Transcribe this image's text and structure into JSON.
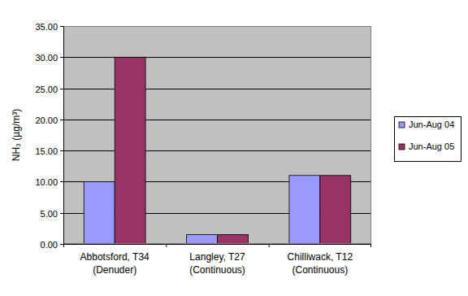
{
  "chart_data": {
    "type": "bar",
    "y_label": "NH₃ (µg/m³)",
    "categories": [
      "Abbotsford, T34\n(Denuder)",
      "Langley, T27\n(Continuous)",
      "Chilliwack, T12\n(Continuous)"
    ],
    "series": [
      {
        "name": "Jun-Aug 04",
        "color": "#9999ff",
        "values": [
          10,
          1.5,
          11
        ]
      },
      {
        "name": "Jun-Aug 05",
        "color": "#993366",
        "values": [
          30,
          1.5,
          11
        ]
      }
    ],
    "ylim": [
      0,
      35
    ],
    "yticks": [
      {
        "value": 0,
        "label": "0.00"
      },
      {
        "value": 5,
        "label": "5.00"
      },
      {
        "value": 10,
        "label": "10.00"
      },
      {
        "value": 15,
        "label": "15.00"
      },
      {
        "value": 20,
        "label": "20.00"
      },
      {
        "value": 25,
        "label": "25.00"
      },
      {
        "value": 30,
        "label": "30.00"
      },
      {
        "value": 35,
        "label": "35.00"
      }
    ],
    "grid": true,
    "legend": "right"
  }
}
